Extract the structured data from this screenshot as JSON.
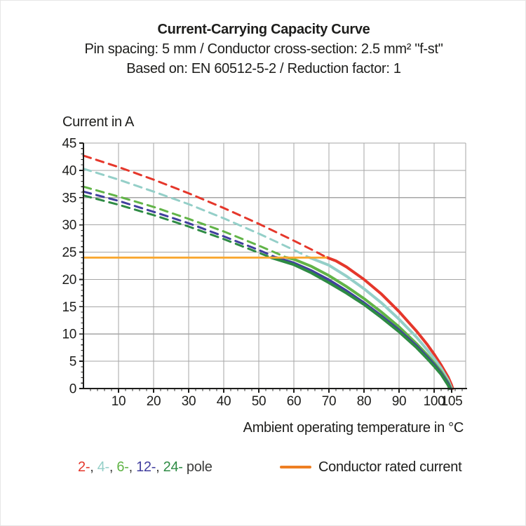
{
  "header": {
    "title": "Current-Carrying Capacity Curve",
    "subtitle1": "Pin spacing: 5 mm / Conductor cross-section: 2.5 mm² \"f-st\"",
    "subtitle2": "Based on: EN 60512-5-2 / Reduction factor: 1"
  },
  "chart_data": {
    "type": "line",
    "title": "Current-Carrying Capacity Curve",
    "xlabel": "Ambient operating temperature in °C",
    "ylabel": "Current in A",
    "xlim": [
      0,
      109
    ],
    "ylim": [
      0,
      45
    ],
    "x_major_ticks": [
      10,
      20,
      30,
      40,
      50,
      60,
      70,
      80,
      90,
      100,
      105
    ],
    "x_grid_ticks": [
      10,
      20,
      30,
      40,
      50,
      60,
      70,
      80,
      90,
      100
    ],
    "x_minor_step": 2,
    "x_minor_max": 108,
    "y_major_ticks": [
      0,
      5,
      10,
      15,
      20,
      25,
      30,
      35,
      40,
      45
    ],
    "y_grid_ticks": [
      5,
      10,
      15,
      20,
      25,
      30,
      35,
      40
    ],
    "y_minor_step": 1,
    "grid_color": "#a6a6a6",
    "axis_color": "#1d1d1b",
    "rated_current": {
      "value": 24,
      "end_x": 69.5,
      "label": "Conductor rated current",
      "line_color": "#f9a72f",
      "legend_color": "#ee7f22"
    },
    "series": [
      {
        "name": "2-pole",
        "legend_label": "2-",
        "color": "#e5372b",
        "rated_crossing_temp": 69.5,
        "zero_current_temp": 105.3,
        "dashed_points": [
          [
            0,
            42.7
          ],
          [
            10,
            40.6
          ],
          [
            20,
            38.3
          ],
          [
            30,
            35.8
          ],
          [
            40,
            33.1
          ],
          [
            50,
            30.2
          ],
          [
            60,
            27.1
          ],
          [
            65,
            25.5
          ],
          [
            69.5,
            24
          ]
        ],
        "solid_points": [
          [
            69.5,
            24
          ],
          [
            72,
            23.4
          ],
          [
            75,
            22.3
          ],
          [
            80,
            20.0
          ],
          [
            85,
            17.3
          ],
          [
            90,
            14.1
          ],
          [
            95,
            10.5
          ],
          [
            98,
            8.1
          ],
          [
            100,
            6.3
          ],
          [
            102,
            4.3
          ],
          [
            104,
            2.1
          ],
          [
            105,
            0.6
          ],
          [
            105.3,
            0
          ]
        ]
      },
      {
        "name": "4-pole",
        "legend_label": "4-",
        "color": "#94cfc8",
        "rated_crossing_temp": 64.5,
        "zero_current_temp": 105.0,
        "dashed_points": [
          [
            0,
            40.3
          ],
          [
            10,
            38.3
          ],
          [
            20,
            36.1
          ],
          [
            30,
            33.8
          ],
          [
            40,
            31.2
          ],
          [
            50,
            28.4
          ],
          [
            60,
            25.4
          ],
          [
            64.5,
            24
          ]
        ],
        "solid_points": [
          [
            64.5,
            24
          ],
          [
            70,
            22.6
          ],
          [
            75,
            20.6
          ],
          [
            80,
            18.3
          ],
          [
            85,
            15.7
          ],
          [
            90,
            12.7
          ],
          [
            95,
            9.4
          ],
          [
            98,
            7.1
          ],
          [
            100,
            5.5
          ],
          [
            102,
            3.7
          ],
          [
            104,
            1.5
          ],
          [
            105,
            0
          ]
        ]
      },
      {
        "name": "6-pole",
        "legend_label": "6-",
        "color": "#61b447",
        "rated_crossing_temp": 58,
        "zero_current_temp": 104.8,
        "dashed_points": [
          [
            0,
            37.0
          ],
          [
            10,
            35.2
          ],
          [
            20,
            33.3
          ],
          [
            30,
            31.1
          ],
          [
            40,
            28.8
          ],
          [
            50,
            26.2
          ],
          [
            58,
            24
          ]
        ],
        "solid_points": [
          [
            58,
            24
          ],
          [
            60,
            23.7
          ],
          [
            65,
            22.4
          ],
          [
            70,
            20.7
          ],
          [
            75,
            18.7
          ],
          [
            80,
            16.5
          ],
          [
            85,
            14.0
          ],
          [
            90,
            11.3
          ],
          [
            95,
            8.2
          ],
          [
            98,
            6.2
          ],
          [
            100,
            4.7
          ],
          [
            102,
            3.1
          ],
          [
            104,
            1.1
          ],
          [
            104.8,
            0
          ]
        ]
      },
      {
        "name": "12-pole",
        "legend_label": "12-",
        "color": "#413e9e",
        "rated_crossing_temp": 55,
        "zero_current_temp": 104.6,
        "dashed_points": [
          [
            0,
            36.1
          ],
          [
            10,
            34.4
          ],
          [
            20,
            32.4
          ],
          [
            30,
            30.3
          ],
          [
            40,
            27.9
          ],
          [
            50,
            25.4
          ],
          [
            55,
            24
          ]
        ],
        "solid_points": [
          [
            55,
            24
          ],
          [
            60,
            23.0
          ],
          [
            65,
            21.6
          ],
          [
            70,
            19.9
          ],
          [
            75,
            17.9
          ],
          [
            80,
            15.7
          ],
          [
            85,
            13.3
          ],
          [
            90,
            10.7
          ],
          [
            95,
            7.8
          ],
          [
            98,
            5.8
          ],
          [
            100,
            4.4
          ],
          [
            102,
            2.8
          ],
          [
            104,
            0.9
          ],
          [
            104.6,
            0
          ]
        ]
      },
      {
        "name": "24-pole",
        "legend_label": "24-",
        "color": "#2e8b44",
        "rated_crossing_temp": 53.5,
        "zero_current_temp": 104.4,
        "dashed_points": [
          [
            0,
            35.4
          ],
          [
            10,
            33.7
          ],
          [
            20,
            31.8
          ],
          [
            30,
            29.7
          ],
          [
            40,
            27.4
          ],
          [
            50,
            24.9
          ],
          [
            53.5,
            24
          ]
        ],
        "solid_points": [
          [
            53.5,
            24
          ],
          [
            60,
            22.7
          ],
          [
            65,
            21.2
          ],
          [
            70,
            19.4
          ],
          [
            75,
            17.5
          ],
          [
            80,
            15.4
          ],
          [
            85,
            13.0
          ],
          [
            90,
            10.4
          ],
          [
            95,
            7.5
          ],
          [
            98,
            5.5
          ],
          [
            100,
            4.1
          ],
          [
            102,
            2.6
          ],
          [
            104,
            0.6
          ],
          [
            104.4,
            0
          ]
        ]
      }
    ],
    "legend_position": "bottom"
  },
  "legend": {
    "separator": ", ",
    "suffix": "pole",
    "text_color": "#3c3c3b"
  }
}
